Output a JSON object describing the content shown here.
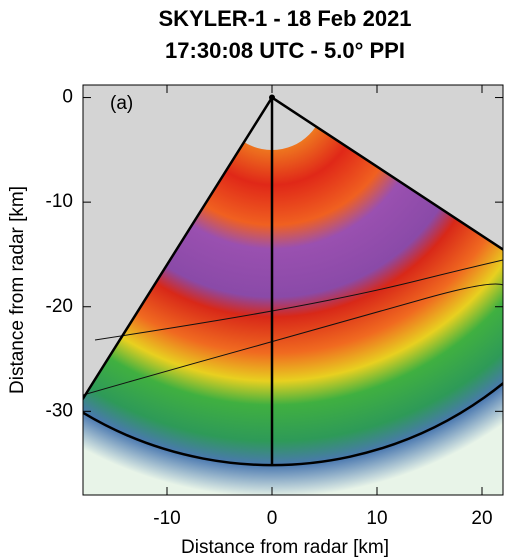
{
  "chart_data": {
    "type": "ppi",
    "title": "SKYLER-1 - 18 Feb 2021",
    "subtitle": "17:30:08 UTC - 5.0° PPI",
    "annotation": "(a)",
    "x_label": "Distance from radar [km]",
    "y_label": "Distance from radar [km]",
    "xlim": [
      -18,
      22
    ],
    "ylim": [
      -38,
      1.2
    ],
    "xticks": [
      -10,
      0,
      10,
      20
    ],
    "yticks": [
      -30,
      -20,
      -10,
      0
    ]
  }
}
